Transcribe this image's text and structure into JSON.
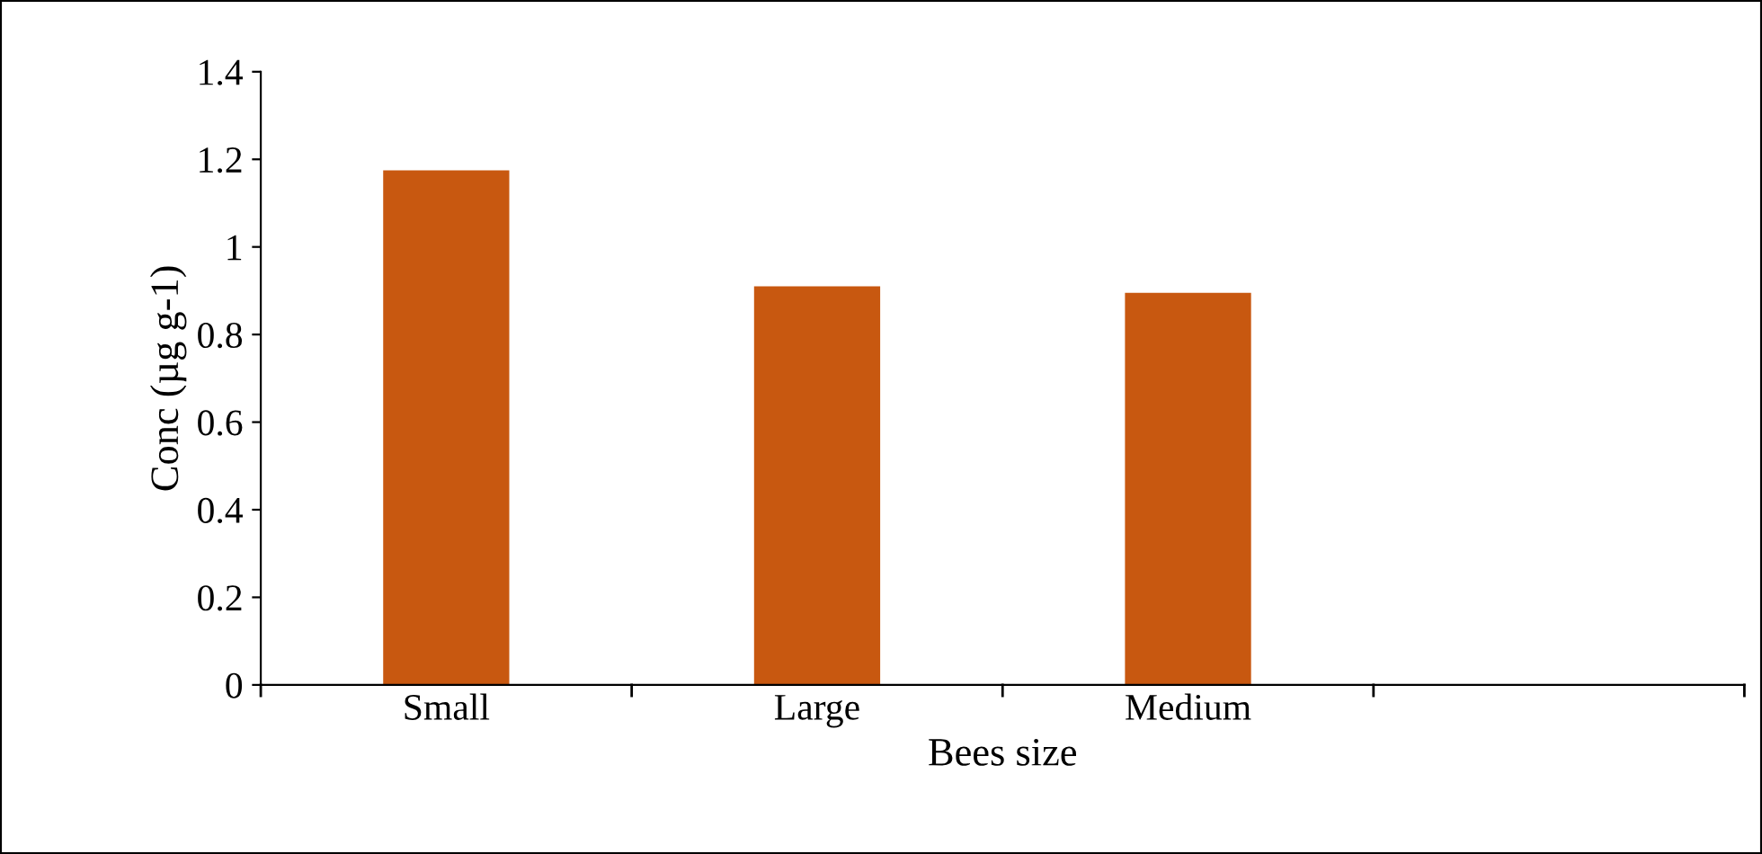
{
  "chart_data": {
    "type": "bar",
    "xlabel": "Bees size",
    "ylabel": "Conc (µg g-1)",
    "categories": [
      "Small",
      "Large",
      "Medium",
      null
    ],
    "values": [
      1.175,
      0.91,
      0.895,
      null
    ],
    "color": "#c85810",
    "ylim": [
      0,
      1.4
    ],
    "yticks": [
      0,
      0.2,
      0.4,
      0.6,
      0.8,
      1,
      1.2,
      1.4
    ],
    "grid": false,
    "legend": false
  }
}
